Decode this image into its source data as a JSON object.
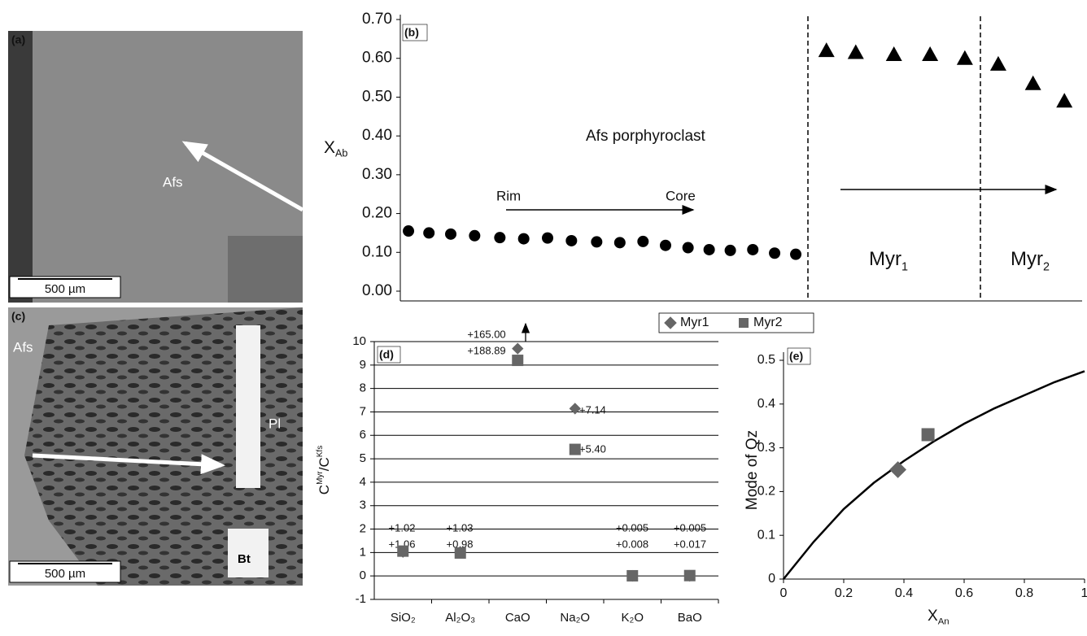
{
  "panels": [
    {
      "label": "(a)",
      "texts": [
        "Afs",
        "500 µm"
      ]
    },
    {
      "label": "(c)",
      "texts": [
        "Afs",
        "Pl",
        "Bt",
        "500 µm"
      ]
    }
  ],
  "chart_data": [
    {
      "type": "scatter",
      "panel_label": "(b)",
      "ylabel": {
        "text": "X",
        "sub": "Ab"
      },
      "annotations": [
        "Afs porphyroclast",
        "Rim",
        "Core"
      ],
      "zones": [
        {
          "text": "Myr",
          "sub": "1"
        },
        {
          "text": "Myr",
          "sub": "2"
        }
      ],
      "xlim": [
        0,
        100
      ],
      "ylim": [
        0,
        0.7
      ],
      "yticks": [
        {
          "value": 0,
          "label": "0.00"
        },
        {
          "value": 0.1,
          "label": "0.10"
        },
        {
          "value": 0.2,
          "label": "0.20"
        },
        {
          "value": 0.3,
          "label": "0.30"
        },
        {
          "value": 0.4,
          "label": "0.40"
        },
        {
          "value": 0.5,
          "label": "0.50"
        },
        {
          "value": 0.6,
          "label": "0.60"
        },
        {
          "value": 0.7,
          "label": "0.70"
        }
      ],
      "series": [
        {
          "marker": "circle",
          "color": "#000000",
          "x": [
            1.2,
            4.2,
            7.4,
            10.9,
            14.6,
            18.1,
            21.6,
            25.1,
            28.8,
            32.2,
            35.6,
            38.9,
            42.2,
            45.3,
            48.4,
            51.7,
            54.9,
            58.0
          ],
          "values": [
            0.155,
            0.15,
            0.147,
            0.143,
            0.138,
            0.135,
            0.137,
            0.13,
            0.127,
            0.125,
            0.128,
            0.118,
            0.112,
            0.107,
            0.105,
            0.107,
            0.098,
            0.095
          ]
        },
        {
          "marker": "triangle",
          "color": "#000000",
          "x": [
            62.5,
            66.8,
            72.4,
            77.7,
            82.8,
            87.7,
            92.8,
            97.4
          ],
          "values": [
            0.62,
            0.615,
            0.61,
            0.61,
            0.6,
            0.585,
            0.535,
            0.49
          ]
        }
      ]
    },
    {
      "type": "scatter",
      "panel_label": "(d)",
      "ylabel": [
        {
          "text": "C"
        },
        {
          "sup": "Myr"
        },
        {
          "text": "/C"
        },
        {
          "sup": "Kfs"
        }
      ],
      "categories": [
        "SiO₂",
        "Al₂O₃",
        "CaO",
        "Na₂O",
        "K₂O",
        "BaO"
      ],
      "ylim": [
        -1,
        10
      ],
      "yticks": [
        -1,
        0,
        1,
        2,
        3,
        4,
        5,
        6,
        7,
        8,
        9,
        10
      ],
      "grid": true,
      "legend": "top",
      "annotations": [
        "+165.00",
        "+188.89",
        "+7.14",
        "+5.40",
        "+1.02",
        "+1.06",
        "+1.03",
        "+0.98",
        "+0.005",
        "+0.008",
        "+0.005",
        "+0.017"
      ],
      "series": [
        {
          "name": "Myr1",
          "marker": "diamond",
          "color": "#666666",
          "values": [
            1.02,
            1.03,
            9.7,
            7.14,
            0.005,
            0.005
          ]
        },
        {
          "name": "Myr2",
          "marker": "square",
          "color": "#666666",
          "values": [
            1.06,
            0.98,
            9.2,
            5.4,
            0.008,
            0.017
          ]
        }
      ]
    },
    {
      "type": "line",
      "panel_label": "(e)",
      "ylabel": "Mode of Qz",
      "xlabel": {
        "text": "X",
        "sub": "An"
      },
      "xlim": [
        0,
        1
      ],
      "ylim": [
        0,
        0.5
      ],
      "xticks": [
        0,
        0.2,
        0.4,
        0.6,
        0.8,
        1
      ],
      "yticks": [
        0,
        0.1,
        0.2,
        0.3,
        0.4,
        0.5
      ],
      "series": [
        {
          "marker": "line",
          "color": "#000000",
          "x": [
            0,
            0.1,
            0.2,
            0.3,
            0.4,
            0.5,
            0.6,
            0.7,
            0.8,
            0.9,
            1
          ],
          "values": [
            0,
            0.085,
            0.16,
            0.22,
            0.27,
            0.315,
            0.355,
            0.39,
            0.42,
            0.45,
            0.475
          ]
        },
        {
          "marker": "diamond",
          "color": "#666666",
          "x": [
            0.38
          ],
          "values": [
            0.25
          ]
        },
        {
          "marker": "square",
          "color": "#666666",
          "x": [
            0.48
          ],
          "values": [
            0.33
          ]
        }
      ]
    }
  ]
}
